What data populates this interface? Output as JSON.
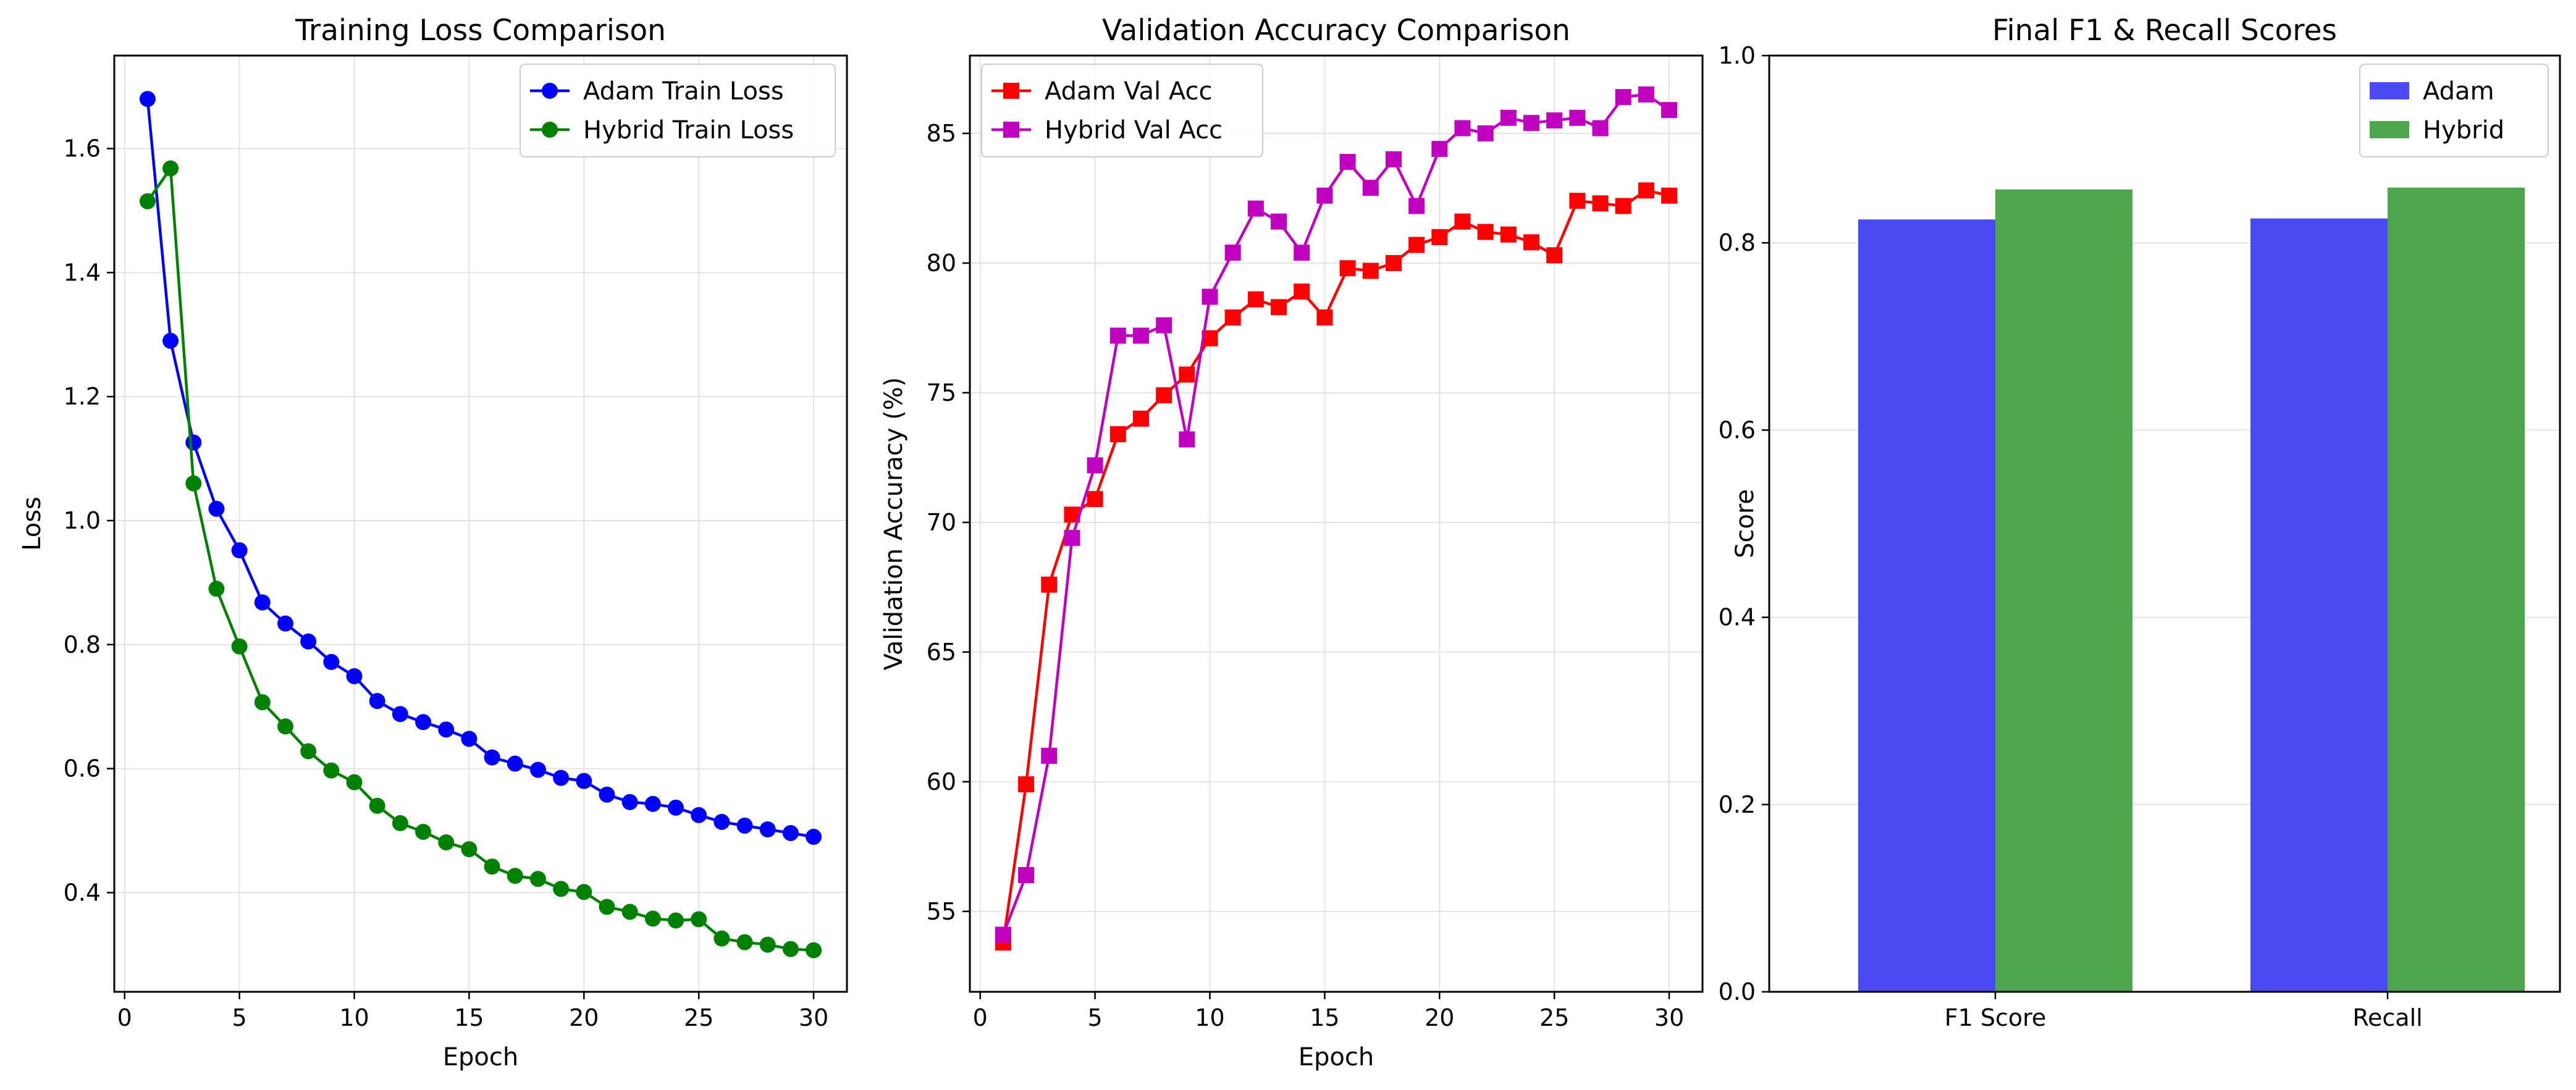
{
  "chart_data": [
    {
      "type": "line",
      "title": "Training Loss Comparison",
      "xlabel": "Epoch",
      "ylabel": "Loss",
      "xlim": [
        -0.45,
        31.45
      ],
      "ylim": [
        0.24,
        1.75
      ],
      "xticks": [
        0,
        5,
        10,
        15,
        20,
        25,
        30
      ],
      "yticks": [
        0.4,
        0.6,
        0.8,
        1.0,
        1.2,
        1.4,
        1.6
      ],
      "ytick_labels": [
        "0.4",
        "0.6",
        "0.8",
        "1.0",
        "1.2",
        "1.4",
        "1.6"
      ],
      "grid": true,
      "legend_position": "top-right",
      "x": [
        1,
        2,
        3,
        4,
        5,
        6,
        7,
        8,
        9,
        10,
        11,
        12,
        13,
        14,
        15,
        16,
        17,
        18,
        19,
        20,
        21,
        22,
        23,
        24,
        25,
        26,
        27,
        28,
        29,
        30
      ],
      "series": [
        {
          "name": "Adam Train Loss",
          "color": "#0000ff",
          "marker": "circle",
          "values": [
            1.68,
            1.29,
            1.126,
            1.019,
            0.952,
            0.868,
            0.834,
            0.805,
            0.772,
            0.749,
            0.709,
            0.688,
            0.675,
            0.663,
            0.648,
            0.618,
            0.608,
            0.598,
            0.585,
            0.58,
            0.558,
            0.546,
            0.543,
            0.537,
            0.525,
            0.514,
            0.508,
            0.502,
            0.496,
            0.49
          ]
        },
        {
          "name": "Hybrid Train Loss",
          "color": "#008000",
          "marker": "circle",
          "values": [
            1.515,
            1.568,
            1.06,
            0.89,
            0.797,
            0.707,
            0.668,
            0.628,
            0.597,
            0.578,
            0.54,
            0.512,
            0.498,
            0.481,
            0.47,
            0.442,
            0.427,
            0.422,
            0.406,
            0.401,
            0.377,
            0.369,
            0.358,
            0.355,
            0.357,
            0.326,
            0.32,
            0.316,
            0.309,
            0.307
          ]
        }
      ]
    },
    {
      "type": "line",
      "title": "Validation Accuracy Comparison",
      "xlabel": "Epoch",
      "ylabel": "Validation Accuracy (%)",
      "xlim": [
        -0.45,
        31.45
      ],
      "ylim": [
        51.9,
        88.0
      ],
      "xticks": [
        0,
        5,
        10,
        15,
        20,
        25,
        30
      ],
      "yticks": [
        55,
        60,
        65,
        70,
        75,
        80,
        85
      ],
      "ytick_labels": [
        "55",
        "60",
        "65",
        "70",
        "75",
        "80",
        "85"
      ],
      "grid": true,
      "legend_position": "top-left",
      "x": [
        1,
        2,
        3,
        4,
        5,
        6,
        7,
        8,
        9,
        10,
        11,
        12,
        13,
        14,
        15,
        16,
        17,
        18,
        19,
        20,
        21,
        22,
        23,
        24,
        25,
        26,
        27,
        28,
        29,
        30
      ],
      "series": [
        {
          "name": "Adam Val Acc",
          "color": "#ff0000",
          "marker": "square",
          "values": [
            53.8,
            59.9,
            67.6,
            70.3,
            70.9,
            73.4,
            74.0,
            74.9,
            75.7,
            77.1,
            77.9,
            78.6,
            78.3,
            78.9,
            77.9,
            79.8,
            79.7,
            80.0,
            80.7,
            81.0,
            81.6,
            81.2,
            81.1,
            80.8,
            80.3,
            82.4,
            82.3,
            82.2,
            82.8,
            82.6
          ]
        },
        {
          "name": "Hybrid Val Acc",
          "color": "#bf00bf",
          "marker": "square",
          "values": [
            54.1,
            56.4,
            61.0,
            69.4,
            72.2,
            77.2,
            77.2,
            77.6,
            73.2,
            78.7,
            80.4,
            82.1,
            81.6,
            80.4,
            82.6,
            83.9,
            82.9,
            84.0,
            82.2,
            84.4,
            85.2,
            85.0,
            85.6,
            85.4,
            85.5,
            85.6,
            85.2,
            86.4,
            86.5,
            85.9
          ]
        }
      ]
    },
    {
      "type": "bar",
      "title": "Final F1 & Recall Scores",
      "xlabel": "",
      "ylabel": "Score",
      "ylim": [
        0.0,
        1.0
      ],
      "yticks": [
        0.0,
        0.2,
        0.4,
        0.6,
        0.8,
        1.0
      ],
      "ytick_labels": [
        "0.0",
        "0.2",
        "0.4",
        "0.6",
        "0.8",
        "1.0"
      ],
      "grid": true,
      "legend_position": "top-right",
      "categories": [
        "F1 Score",
        "Recall"
      ],
      "series": [
        {
          "name": "Adam",
          "color": "#4a4af5",
          "values": [
            0.825,
            0.826
          ]
        },
        {
          "name": "Hybrid",
          "color": "#4ca64c",
          "values": [
            0.857,
            0.859
          ]
        }
      ]
    }
  ]
}
